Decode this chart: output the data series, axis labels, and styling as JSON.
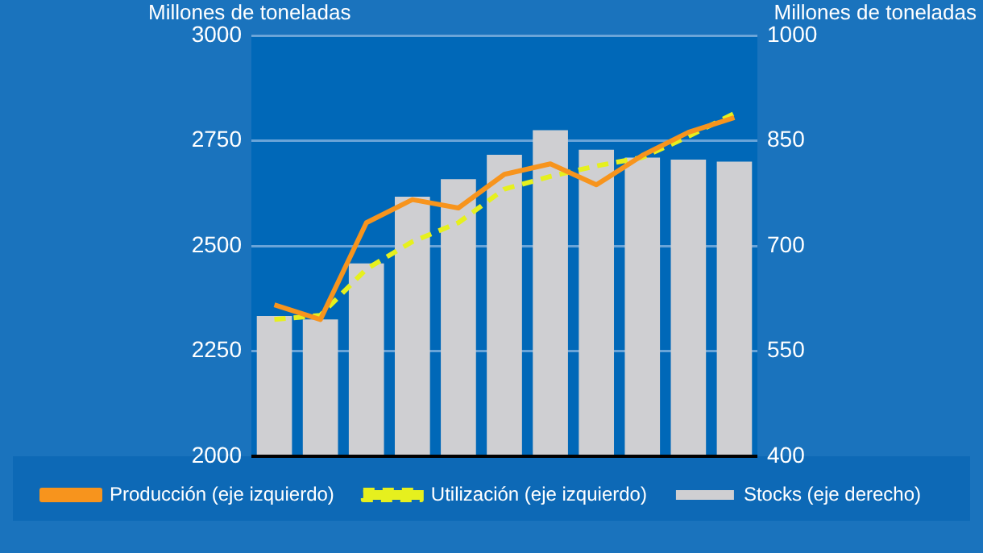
{
  "chart_data": {
    "type": "bar",
    "ylabel": "Millones de toneladas",
    "y2label": "Millones de toneladas",
    "categories": [
      null,
      null,
      null,
      null,
      null,
      null,
      null,
      null,
      null,
      null,
      null
    ],
    "series": [
      {
        "name": "Producción (eje izquierdo)",
        "type": "line",
        "color": "#f7941d",
        "line_style": "solid",
        "values": [
          2360,
          2325,
          2555,
          2610,
          2590,
          2670,
          2695,
          2645,
          2715,
          2770,
          2805
        ]
      },
      {
        "name": "Utilización (eje izquierdo)",
        "type": "line",
        "color": "#e6f01e",
        "line_style": "dashed",
        "values": [
          2325,
          2335,
          2445,
          2510,
          2555,
          2635,
          2665,
          2690,
          2710,
          2760,
          2815
        ]
      },
      {
        "name": "Stocks (eje derecho)",
        "axis": "y2",
        "color": "#cfcfd2",
        "values": [
          600,
          595,
          675,
          770,
          795,
          830,
          865,
          837,
          826,
          823,
          820
        ]
      }
    ],
    "ylim": [
      2000,
      3000
    ],
    "yticks": [
      2000,
      2250,
      2500,
      2750,
      3000
    ],
    "y2lim": [
      400,
      1000
    ],
    "y2ticks": [
      400,
      550,
      700,
      850,
      1000
    ],
    "grid": "y",
    "legend": "bottom",
    "tick_labels": "y",
    "marker": "none"
  }
}
